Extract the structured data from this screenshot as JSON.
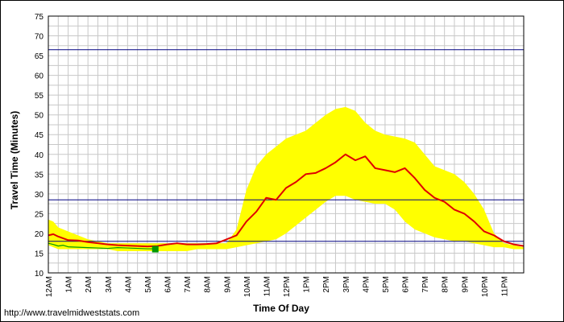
{
  "source_link": "http://www.travelmidweststats.com",
  "chart_data": {
    "type": "line",
    "title": "",
    "xlabel": "Time Of Day",
    "ylabel": "Travel Time (Minutes)",
    "ylim": [
      10,
      75
    ],
    "yticks": [
      10,
      15,
      20,
      25,
      30,
      35,
      40,
      45,
      50,
      55,
      60,
      65,
      70,
      75
    ],
    "xlim": [
      0,
      24
    ],
    "xticks": [
      {
        "x": 0,
        "label": "12AM"
      },
      {
        "x": 1,
        "label": "1AM"
      },
      {
        "x": 2,
        "label": "2AM"
      },
      {
        "x": 3,
        "label": "3AM"
      },
      {
        "x": 4,
        "label": "4AM"
      },
      {
        "x": 5,
        "label": "5AM"
      },
      {
        "x": 6,
        "label": "6AM"
      },
      {
        "x": 7,
        "label": "7AM"
      },
      {
        "x": 8,
        "label": "8AM"
      },
      {
        "x": 9,
        "label": "9AM"
      },
      {
        "x": 10,
        "label": "10AM"
      },
      {
        "x": 11,
        "label": "11AM"
      },
      {
        "x": 12,
        "label": "12PM"
      },
      {
        "x": 13,
        "label": "1PM"
      },
      {
        "x": 14,
        "label": "2PM"
      },
      {
        "x": 15,
        "label": "3PM"
      },
      {
        "x": 16,
        "label": "4PM"
      },
      {
        "x": 17,
        "label": "5PM"
      },
      {
        "x": 18,
        "label": "6PM"
      },
      {
        "x": 19,
        "label": "7PM"
      },
      {
        "x": 20,
        "label": "8PM"
      },
      {
        "x": 21,
        "label": "9PM"
      },
      {
        "x": 22,
        "label": "10PM"
      },
      {
        "x": 23,
        "label": "11PM"
      }
    ],
    "grid": true,
    "band_color": "#ffff00",
    "band_x": [
      0,
      0.25,
      0.5,
      1,
      1.5,
      2,
      2.5,
      3,
      3.5,
      4,
      4.5,
      5,
      5.5,
      6,
      6.5,
      7,
      7.5,
      8,
      8.5,
      9,
      9.5,
      10,
      10.5,
      11,
      11.5,
      12,
      12.5,
      13,
      13.5,
      14,
      14.5,
      15,
      15.5,
      16,
      16.5,
      17,
      17.5,
      18,
      18.5,
      19,
      19.5,
      20,
      20.5,
      21,
      21.5,
      22,
      22.5,
      23,
      23.5,
      24
    ],
    "band_upper": [
      23.5,
      23,
      21.5,
      20.5,
      19.5,
      18.5,
      18,
      17.5,
      17.5,
      17.5,
      17.5,
      17.5,
      17.5,
      17.5,
      17.5,
      17.5,
      17.5,
      17.5,
      17.5,
      17.5,
      21,
      31,
      37,
      40,
      42,
      44,
      45,
      46,
      48,
      50,
      51.5,
      52,
      51,
      48,
      46,
      45,
      44.5,
      44,
      43,
      40,
      37,
      36,
      35,
      33,
      30,
      26,
      20,
      17.5,
      17,
      16.5
    ],
    "band_lower": [
      17,
      16.5,
      16,
      16,
      16,
      16,
      16,
      16,
      15.5,
      15.5,
      15.5,
      15.5,
      15.5,
      15.5,
      15.5,
      15.5,
      16,
      16,
      16,
      16,
      16.5,
      17,
      17.5,
      18,
      18.5,
      20,
      22,
      24,
      26,
      28,
      29.5,
      29.5,
      28.5,
      28,
      27.5,
      27.5,
      26,
      23,
      21,
      20,
      19,
      18.5,
      18,
      18,
      17.5,
      17,
      16.5,
      16.5,
      16,
      16
    ],
    "thresholds": [
      {
        "y": 66.5,
        "color": "#000080"
      },
      {
        "y": 28.5,
        "color": "#000080"
      },
      {
        "y": 18,
        "color": "#000080"
      }
    ],
    "series": [
      {
        "color": "#e00000",
        "x": [
          0,
          0.25,
          0.5,
          1,
          1.5,
          2,
          2.5,
          3,
          3.5,
          4,
          4.5,
          5,
          5.5,
          6,
          6.5,
          7,
          7.5,
          8,
          8.5,
          9,
          9.5,
          10,
          10.5,
          11,
          11.5,
          12,
          12.5,
          13,
          13.5,
          14,
          14.5,
          15,
          15.5,
          16,
          16.5,
          17,
          17.5,
          18,
          18.5,
          19,
          19.5,
          20,
          20.5,
          21,
          21.5,
          22,
          22.5,
          23,
          23.5,
          24
        ],
        "y": [
          19.5,
          19.8,
          19.2,
          18.3,
          18.2,
          17.8,
          17.5,
          17.2,
          17,
          16.9,
          16.8,
          16.7,
          16.8,
          17.2,
          17.5,
          17.2,
          17.2,
          17.3,
          17.5,
          18.5,
          19.5,
          23,
          25.5,
          29,
          28.5,
          31.5,
          33,
          35,
          35.3,
          36.5,
          38,
          40,
          38.5,
          39.5,
          36.5,
          36,
          35.5,
          36.5,
          34,
          31,
          29,
          28,
          26,
          25,
          23,
          20.5,
          19.5,
          18,
          17.2,
          16.8
        ]
      },
      {
        "color": "#009900",
        "x": [
          0,
          0.25,
          0.5,
          0.75,
          1,
          1.5,
          2,
          2.5,
          3,
          3.5,
          4,
          4.5,
          5,
          5.5
        ],
        "y": [
          17.5,
          17.2,
          16.8,
          17,
          16.6,
          16.5,
          16.4,
          16.3,
          16.2,
          16.4,
          16.3,
          16.2,
          16.1,
          16.1
        ]
      }
    ],
    "current_marker": {
      "x": 5.4,
      "y": 16,
      "color": "#009900"
    }
  }
}
